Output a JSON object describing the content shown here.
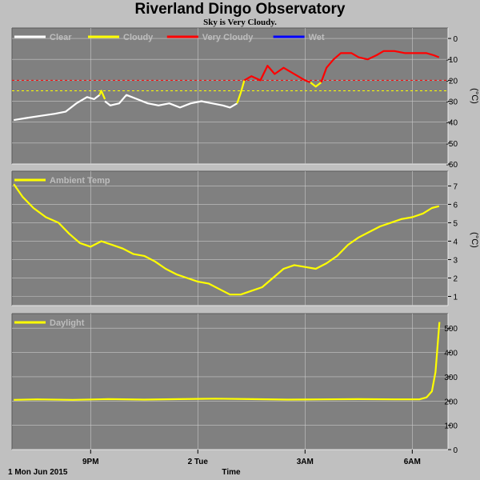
{
  "header": {
    "title": "Riverland Dingo Observatory",
    "subtitle": "Sky is Very Cloudy."
  },
  "colors": {
    "background": "#c0c0c0",
    "plot_area": "#808080",
    "grid": "#c8c8c8",
    "clear": "#ffffff",
    "cloudy": "#ffff00",
    "very_cloudy": "#ff0000",
    "wet": "#0000ff"
  },
  "x_axis": {
    "label": "Time",
    "date_label": "1 Mon Jun 2015",
    "ticks": [
      {
        "t": 21,
        "label": "9PM",
        "bold": false
      },
      {
        "t": 24,
        "label": "2 Tue",
        "bold": false
      },
      {
        "t": 27,
        "label": "3AM",
        "bold": false
      },
      {
        "t": 30,
        "label": "6AM",
        "bold": false
      }
    ],
    "range": [
      18.8,
      31.0
    ]
  },
  "chart_data": [
    {
      "type": "line",
      "name": "sky",
      "unit": "(°C)",
      "ylim": [
        -60,
        5
      ],
      "yticks": [
        0,
        -10,
        -20,
        -30,
        -40,
        -50,
        -60
      ],
      "grid": true,
      "legend_placement": "top-left",
      "legend": [
        {
          "label": "Clear",
          "color": "#ffffff"
        },
        {
          "label": "Cloudy",
          "color": "#ffff00"
        },
        {
          "label": "Very Cloudy",
          "color": "#ff0000"
        },
        {
          "label": "Wet",
          "color": "#0000ff"
        }
      ],
      "thresholds": [
        {
          "y": -20,
          "color": "#ff0000"
        },
        {
          "y": -25,
          "color": "#ffff00"
        }
      ],
      "series": [
        {
          "name": "Clear",
          "color": "#ffffff",
          "x": [
            18.85,
            19.2,
            19.6,
            20.0,
            20.3,
            20.6,
            20.9,
            21.1,
            21.25
          ],
          "y": [
            -39,
            -38,
            -37,
            -36,
            -35,
            -31,
            -28,
            -29,
            -27
          ]
        },
        {
          "name": "Cloudy",
          "color": "#ffff00",
          "x": [
            21.25,
            21.3,
            21.4
          ],
          "y": [
            -27,
            -25,
            -29
          ]
        },
        {
          "name": "Clear",
          "color": "#ffffff",
          "x": [
            21.4,
            21.55,
            21.8,
            22.0,
            22.3,
            22.6,
            22.9,
            23.2,
            23.5,
            23.8,
            24.1,
            24.4,
            24.7,
            24.9,
            25.1
          ],
          "y": [
            -30,
            -32,
            -31,
            -27,
            -29,
            -31,
            -32,
            -31,
            -33,
            -31,
            -30,
            -31,
            -32,
            -33,
            -31
          ]
        },
        {
          "name": "Cloudy",
          "color": "#ffff00",
          "x": [
            25.1,
            25.2,
            25.3
          ],
          "y": [
            -31,
            -26,
            -20
          ]
        },
        {
          "name": "Very Cloudy",
          "color": "#ff0000",
          "x": [
            25.3,
            25.5,
            25.75,
            25.95,
            26.15,
            26.4,
            26.6,
            26.8,
            27.0,
            27.15
          ],
          "y": [
            -20,
            -18,
            -20,
            -13,
            -17,
            -14,
            -16,
            -18,
            -20,
            -21
          ]
        },
        {
          "name": "Cloudy",
          "color": "#ffff00",
          "x": [
            27.15,
            27.3,
            27.45
          ],
          "y": [
            -21,
            -23,
            -21
          ]
        },
        {
          "name": "Very Cloudy",
          "color": "#ff0000",
          "x": [
            27.45,
            27.6,
            27.8,
            28.0,
            28.3,
            28.5,
            28.75,
            29.0,
            29.2,
            29.5,
            29.8,
            30.1,
            30.4,
            30.6,
            30.75
          ],
          "y": [
            -21,
            -14,
            -10,
            -7,
            -7,
            -9,
            -10,
            -8,
            -6,
            -6,
            -7,
            -7,
            -7,
            -8,
            -9
          ]
        }
      ]
    },
    {
      "type": "line",
      "name": "ambient",
      "unit": "(°C)",
      "ylim": [
        0.5,
        7.8
      ],
      "yticks": [
        1,
        2,
        3,
        4,
        5,
        6,
        7
      ],
      "grid": true,
      "legend_placement": "top-left",
      "legend": [
        {
          "label": "Ambient Temp",
          "color": "#ffff00"
        }
      ],
      "series": [
        {
          "name": "Ambient Temp",
          "color": "#ffff00",
          "x": [
            18.85,
            19.1,
            19.4,
            19.75,
            20.1,
            20.4,
            20.7,
            21.0,
            21.3,
            21.6,
            21.9,
            22.2,
            22.5,
            22.8,
            23.1,
            23.4,
            23.7,
            24.0,
            24.3,
            24.6,
            24.9,
            25.2,
            25.5,
            25.8,
            26.1,
            26.4,
            26.7,
            27.0,
            27.3,
            27.6,
            27.9,
            28.2,
            28.5,
            28.8,
            29.1,
            29.4,
            29.7,
            30.0,
            30.3,
            30.55,
            30.75
          ],
          "y": [
            7.1,
            6.4,
            5.8,
            5.3,
            5.0,
            4.4,
            3.9,
            3.7,
            4.0,
            3.8,
            3.6,
            3.3,
            3.2,
            2.9,
            2.5,
            2.2,
            2.0,
            1.8,
            1.7,
            1.4,
            1.1,
            1.1,
            1.3,
            1.5,
            2.0,
            2.5,
            2.7,
            2.6,
            2.5,
            2.8,
            3.2,
            3.8,
            4.2,
            4.5,
            4.8,
            5.0,
            5.2,
            5.3,
            5.5,
            5.8,
            5.9
          ]
        }
      ]
    },
    {
      "type": "line",
      "name": "daylight",
      "ylim": [
        0,
        560
      ],
      "yticks": [
        0,
        100,
        200,
        300,
        400,
        500
      ],
      "grid": true,
      "legend_placement": "top-left",
      "legend": [
        {
          "label": "Daylight",
          "color": "#ffff00"
        }
      ],
      "series": [
        {
          "name": "Daylight",
          "color": "#ffff00",
          "x": [
            18.85,
            19.5,
            20.5,
            21.5,
            22.5,
            23.5,
            24.5,
            25.5,
            26.5,
            27.5,
            28.5,
            29.5,
            30.2,
            30.4,
            30.55,
            30.65,
            30.72,
            30.76
          ],
          "y": [
            205,
            207,
            205,
            208,
            206,
            208,
            210,
            208,
            206,
            207,
            208,
            207,
            207,
            215,
            240,
            320,
            450,
            525
          ]
        }
      ]
    }
  ]
}
